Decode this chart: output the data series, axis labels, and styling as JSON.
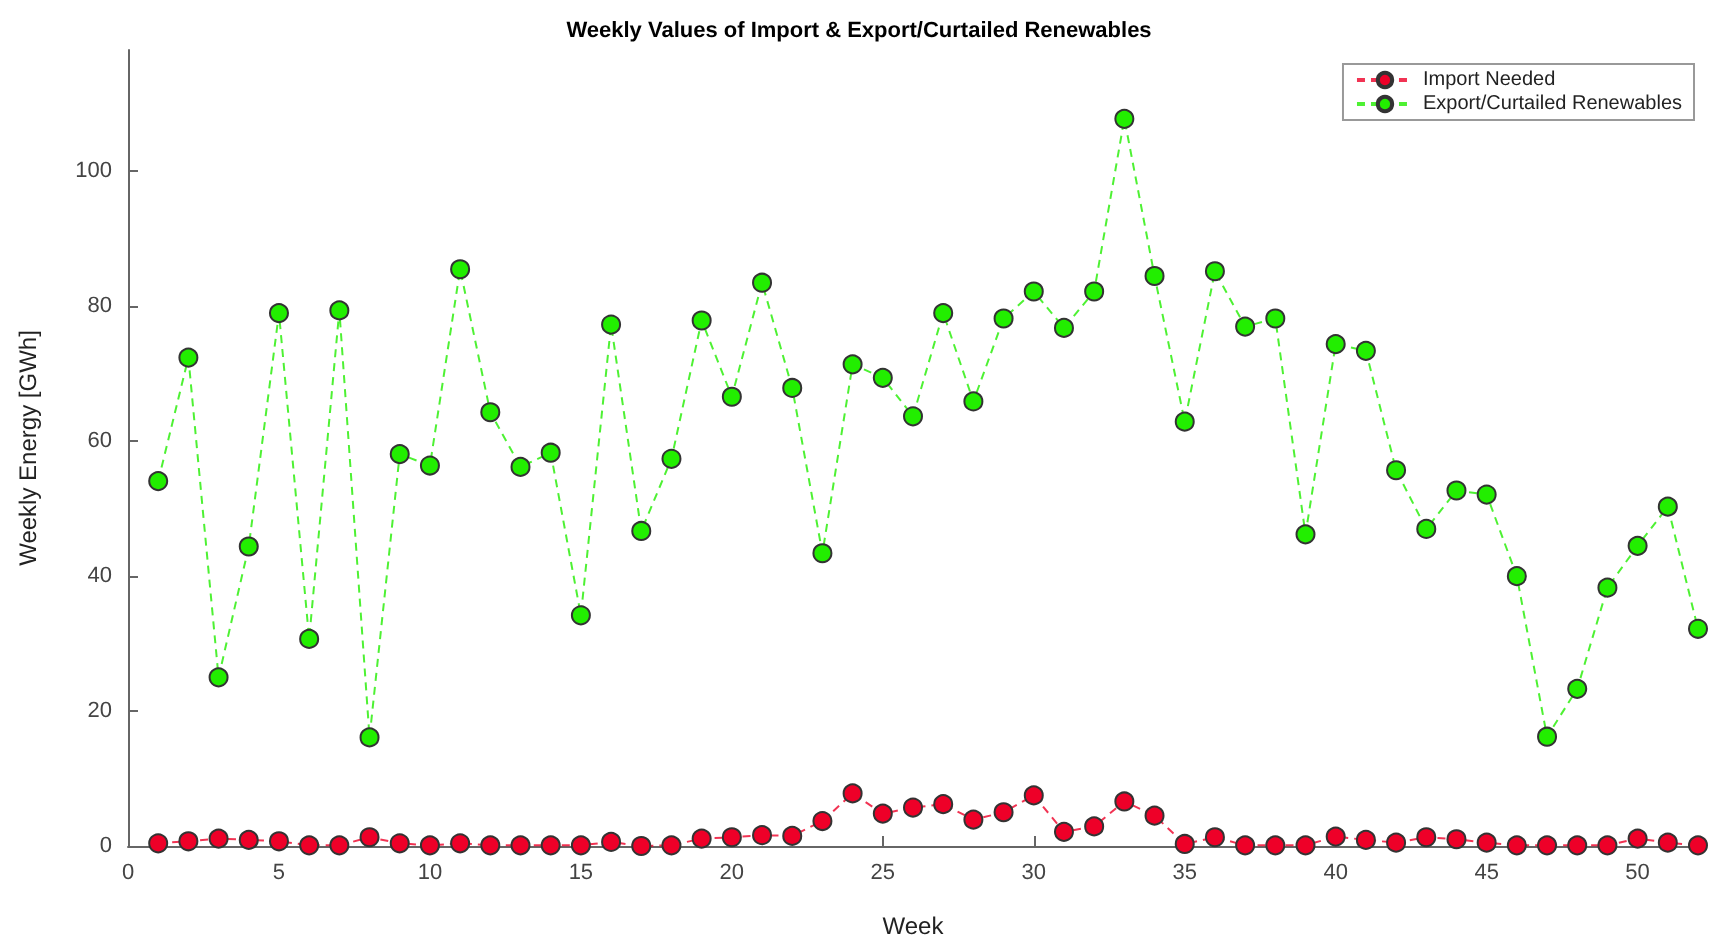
{
  "chart_data": {
    "type": "line",
    "title": "Weekly Values of Import & Export/Curtailed Renewables",
    "xlabel": "Week",
    "ylabel": "Weekly Energy [GWh]",
    "x": [
      1,
      2,
      3,
      4,
      5,
      6,
      7,
      8,
      9,
      10,
      11,
      12,
      13,
      14,
      15,
      16,
      17,
      18,
      19,
      20,
      21,
      22,
      23,
      24,
      25,
      26,
      27,
      28,
      29,
      30,
      31,
      32,
      33,
      34,
      35,
      36,
      37,
      38,
      39,
      40,
      41,
      42,
      43,
      44,
      45,
      46,
      47,
      48,
      49,
      50,
      51,
      52
    ],
    "series": [
      {
        "name": "Import Needed",
        "color": "#ee0028",
        "values": [
          0.4,
          0.7,
          1.1,
          0.9,
          0.7,
          0.1,
          0.1,
          1.3,
          0.4,
          0.1,
          0.4,
          0.1,
          0.1,
          0.1,
          0.1,
          0.6,
          0,
          0.1,
          1.1,
          1.3,
          1.6,
          1.5,
          3.7,
          7.8,
          4.8,
          5.7,
          6.2,
          3.9,
          5,
          7.5,
          2.1,
          2.9,
          6.6,
          4.5,
          0.3,
          1.3,
          0.1,
          0.1,
          0.1,
          1.4,
          0.9,
          0.5,
          1.3,
          1,
          0.5,
          0.1,
          0.1,
          0.1,
          0.1,
          1.1,
          0.5,
          0.1
        ]
      },
      {
        "name": "Export/Curtailed Renewables",
        "color": "#22ee00",
        "values": [
          54.1,
          72.4,
          25,
          44.4,
          79,
          30.7,
          79.4,
          16.1,
          58.1,
          56.4,
          85.5,
          64.3,
          56.2,
          58.3,
          34.2,
          77.3,
          46.7,
          57.4,
          77.9,
          66.6,
          83.5,
          67.9,
          43.4,
          71.4,
          69.4,
          63.7,
          79,
          65.9,
          78.2,
          82.2,
          76.8,
          82.2,
          107.8,
          84.5,
          62.9,
          85.2,
          77,
          78.2,
          46.2,
          74.4,
          73.4,
          55.7,
          47,
          52.7,
          52.1,
          40,
          16.2,
          23.3,
          38.3,
          44.5,
          50.3,
          32.2
        ]
      }
    ],
    "xlim": [
      0,
      52
    ],
    "xticks": [
      0,
      5,
      10,
      15,
      20,
      25,
      30,
      35,
      40,
      45,
      50
    ],
    "ylim": [
      0,
      118
    ],
    "yticks": [
      0,
      20,
      40,
      60,
      80,
      100
    ],
    "grid": false,
    "legend": "top right",
    "marker": "circle",
    "line_style": "dashed"
  }
}
